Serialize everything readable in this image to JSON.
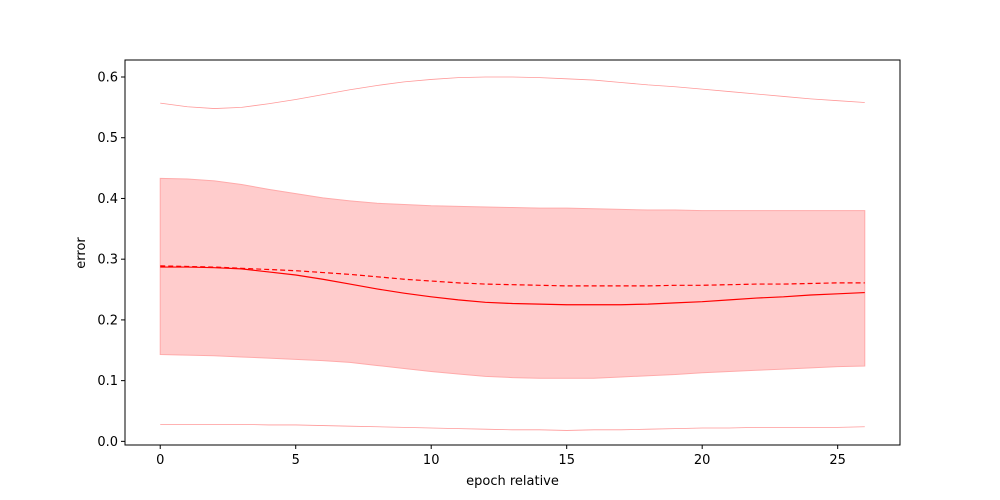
{
  "chart_data": {
    "type": "line",
    "title": "",
    "xlabel": "epoch relative",
    "ylabel": "error",
    "xlim": [
      -1.3,
      27.3
    ],
    "ylim": [
      -0.006,
      0.628
    ],
    "xticks": [
      0,
      5,
      10,
      15,
      20,
      25
    ],
    "yticks": [
      0.0,
      0.1,
      0.2,
      0.3,
      0.4,
      0.5,
      0.6
    ],
    "ytick_labels": [
      "0.0",
      "0.1",
      "0.2",
      "0.3",
      "0.4",
      "0.5",
      "0.6"
    ],
    "grid": false,
    "colors": {
      "line": "#ff0000",
      "band_fill": "#ffcccc",
      "band_edge": "#ffaaaa",
      "extreme": "#ff9999"
    },
    "series": [
      {
        "role": "mean",
        "style": "solid",
        "x": [
          0,
          1,
          2,
          3,
          4,
          5,
          6,
          7,
          8,
          9,
          10,
          11,
          12,
          13,
          14,
          15,
          16,
          17,
          18,
          19,
          20,
          21,
          22,
          23,
          24,
          25,
          26
        ],
        "y": [
          0.287,
          0.287,
          0.286,
          0.284,
          0.279,
          0.274,
          0.267,
          0.259,
          0.251,
          0.244,
          0.238,
          0.233,
          0.229,
          0.227,
          0.226,
          0.225,
          0.225,
          0.225,
          0.226,
          0.228,
          0.23,
          0.233,
          0.236,
          0.238,
          0.241,
          0.243,
          0.245
        ]
      },
      {
        "role": "median",
        "style": "dashed",
        "x": [
          0,
          1,
          2,
          3,
          4,
          5,
          6,
          7,
          8,
          9,
          10,
          11,
          12,
          13,
          14,
          15,
          16,
          17,
          18,
          19,
          20,
          21,
          22,
          23,
          24,
          25,
          26
        ],
        "y": [
          0.289,
          0.288,
          0.287,
          0.285,
          0.283,
          0.281,
          0.278,
          0.275,
          0.271,
          0.267,
          0.264,
          0.261,
          0.259,
          0.258,
          0.257,
          0.256,
          0.256,
          0.256,
          0.256,
          0.257,
          0.257,
          0.258,
          0.259,
          0.259,
          0.26,
          0.261,
          0.261
        ]
      },
      {
        "role": "band_upper",
        "style": "fill",
        "x": [
          0,
          1,
          2,
          3,
          4,
          5,
          6,
          7,
          8,
          9,
          10,
          11,
          12,
          13,
          14,
          15,
          16,
          17,
          18,
          19,
          20,
          21,
          22,
          23,
          24,
          25,
          26
        ],
        "y": [
          0.433,
          0.432,
          0.429,
          0.423,
          0.415,
          0.408,
          0.401,
          0.396,
          0.392,
          0.39,
          0.388,
          0.387,
          0.386,
          0.385,
          0.384,
          0.384,
          0.383,
          0.382,
          0.381,
          0.381,
          0.38,
          0.38,
          0.38,
          0.38,
          0.38,
          0.38,
          0.38
        ]
      },
      {
        "role": "band_lower",
        "style": "fill",
        "x": [
          0,
          1,
          2,
          3,
          4,
          5,
          6,
          7,
          8,
          9,
          10,
          11,
          12,
          13,
          14,
          15,
          16,
          17,
          18,
          19,
          20,
          21,
          22,
          23,
          24,
          25,
          26
        ],
        "y": [
          0.143,
          0.142,
          0.141,
          0.139,
          0.137,
          0.135,
          0.133,
          0.13,
          0.125,
          0.12,
          0.115,
          0.111,
          0.107,
          0.105,
          0.104,
          0.104,
          0.104,
          0.106,
          0.108,
          0.11,
          0.113,
          0.115,
          0.117,
          0.119,
          0.121,
          0.123,
          0.124
        ]
      },
      {
        "role": "max",
        "style": "thin",
        "x": [
          0,
          1,
          2,
          3,
          4,
          5,
          6,
          7,
          8,
          9,
          10,
          11,
          12,
          13,
          14,
          15,
          16,
          17,
          18,
          19,
          20,
          21,
          22,
          23,
          24,
          25,
          26
        ],
        "y": [
          0.557,
          0.551,
          0.548,
          0.55,
          0.556,
          0.563,
          0.571,
          0.579,
          0.586,
          0.592,
          0.596,
          0.599,
          0.6,
          0.6,
          0.599,
          0.597,
          0.595,
          0.591,
          0.587,
          0.584,
          0.58,
          0.576,
          0.572,
          0.568,
          0.564,
          0.561,
          0.558
        ]
      },
      {
        "role": "min",
        "style": "thin",
        "x": [
          0,
          1,
          2,
          3,
          4,
          5,
          6,
          7,
          8,
          9,
          10,
          11,
          12,
          13,
          14,
          15,
          16,
          17,
          18,
          19,
          20,
          21,
          22,
          23,
          24,
          25,
          26
        ],
        "y": [
          0.028,
          0.028,
          0.028,
          0.028,
          0.027,
          0.027,
          0.026,
          0.025,
          0.024,
          0.023,
          0.022,
          0.021,
          0.02,
          0.019,
          0.019,
          0.018,
          0.019,
          0.019,
          0.02,
          0.021,
          0.022,
          0.022,
          0.023,
          0.023,
          0.023,
          0.023,
          0.024
        ]
      }
    ]
  }
}
